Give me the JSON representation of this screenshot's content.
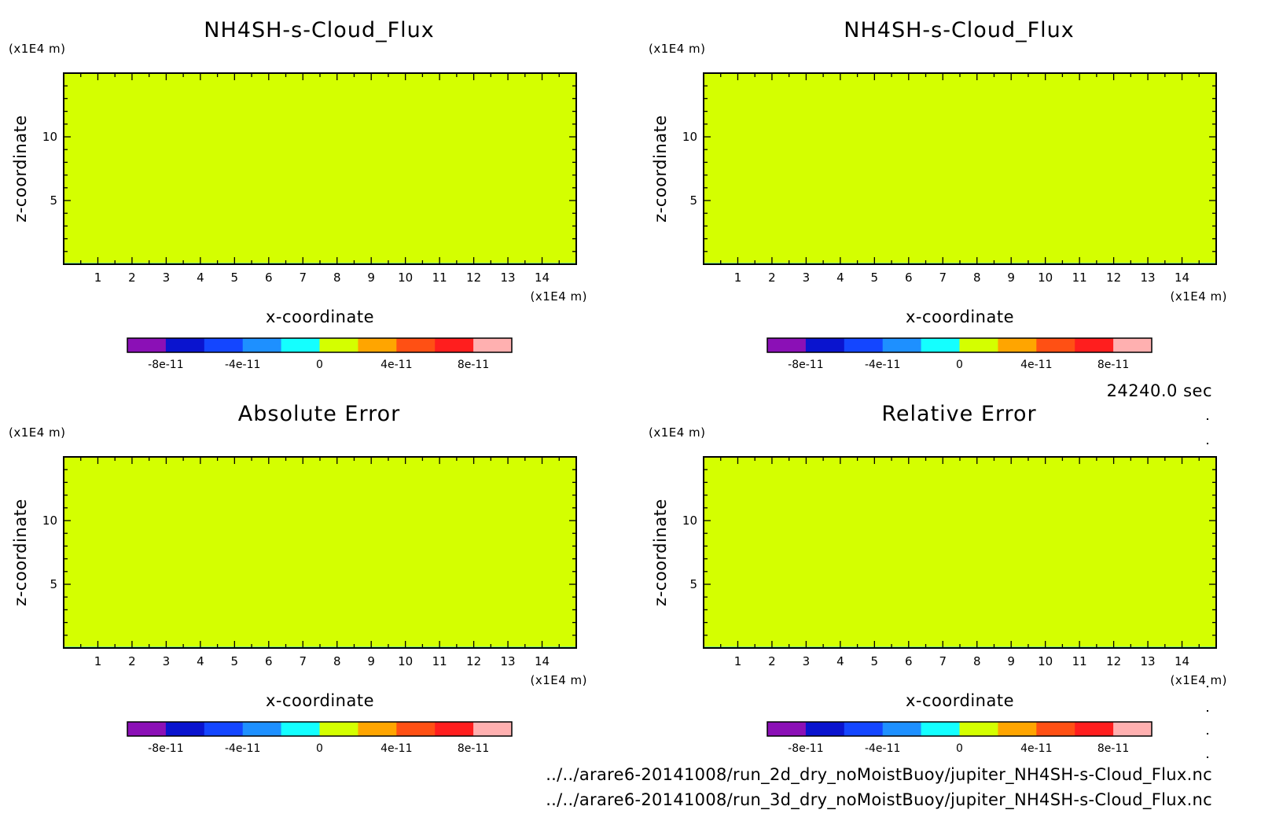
{
  "time_label": "24240.0 sec",
  "footer": {
    "line1": "../../arare6-20141008/run_2d_dry_noMoistBuoy/jupiter_NH4SH-s-Cloud_Flux.nc",
    "line2": "../../arare6-20141008/run_3d_dry_noMoistBuoy/jupiter_NH4SH-s-Cloud_Flux.nc"
  },
  "colorbar": {
    "colors": [
      "#8b10b6",
      "#0a14cf",
      "#1446ff",
      "#1e90ff",
      "#14ffff",
      "#d4ff00",
      "#ffa500",
      "#ff5014",
      "#ff1e1e",
      "#ffb0b0"
    ],
    "labels": [
      "-8e-11",
      "-4e-11",
      "0",
      "4e-11",
      "8e-11"
    ],
    "label_bounds": [
      -8e-11,
      -4e-11,
      0,
      4e-11,
      8e-11
    ],
    "range": [
      -1e-10,
      1e-10
    ]
  },
  "chart_data": [
    {
      "type": "heatmap",
      "title": "NH4SH-s-Cloud_Flux",
      "xlabel": "x-coordinate",
      "ylabel": "z-coordinate",
      "x_unit": "(x1E4 m)",
      "y_unit": "(x1E4 m)",
      "xlim": [
        0,
        15
      ],
      "ylim": [
        0,
        15
      ],
      "xticks": [
        "1",
        "2",
        "3",
        "4",
        "5",
        "6",
        "7",
        "8",
        "9",
        "10",
        "11",
        "12",
        "13",
        "14"
      ],
      "yticks": [
        "5",
        "10"
      ],
      "fill_value": 0,
      "fill_color": "#d4ff00"
    },
    {
      "type": "heatmap",
      "title": "NH4SH-s-Cloud_Flux",
      "xlabel": "x-coordinate",
      "ylabel": "z-coordinate",
      "x_unit": "(x1E4 m)",
      "y_unit": "(x1E4 m)",
      "xlim": [
        0,
        15
      ],
      "ylim": [
        0,
        15
      ],
      "xticks": [
        "1",
        "2",
        "3",
        "4",
        "5",
        "6",
        "7",
        "8",
        "9",
        "10",
        "11",
        "12",
        "13",
        "14"
      ],
      "yticks": [
        "5",
        "10"
      ],
      "fill_value": 0,
      "fill_color": "#d4ff00"
    },
    {
      "type": "heatmap",
      "title": "Absolute Error",
      "xlabel": "x-coordinate",
      "ylabel": "z-coordinate",
      "x_unit": "(x1E4 m)",
      "y_unit": "(x1E4 m)",
      "xlim": [
        0,
        15
      ],
      "ylim": [
        0,
        15
      ],
      "xticks": [
        "1",
        "2",
        "3",
        "4",
        "5",
        "6",
        "7",
        "8",
        "9",
        "10",
        "11",
        "12",
        "13",
        "14"
      ],
      "yticks": [
        "5",
        "10"
      ],
      "fill_value": 0,
      "fill_color": "#d4ff00"
    },
    {
      "type": "heatmap",
      "title": "Relative Error",
      "xlabel": "x-coordinate",
      "ylabel": "z-coordinate",
      "x_unit": "(x1E4 m)",
      "y_unit": "(x1E4 m)",
      "xlim": [
        0,
        15
      ],
      "ylim": [
        0,
        15
      ],
      "xticks": [
        "1",
        "2",
        "3",
        "4",
        "5",
        "6",
        "7",
        "8",
        "9",
        "10",
        "11",
        "12",
        "13",
        "14"
      ],
      "yticks": [
        "5",
        "10"
      ],
      "fill_value": 0,
      "fill_color": "#d4ff00"
    }
  ]
}
